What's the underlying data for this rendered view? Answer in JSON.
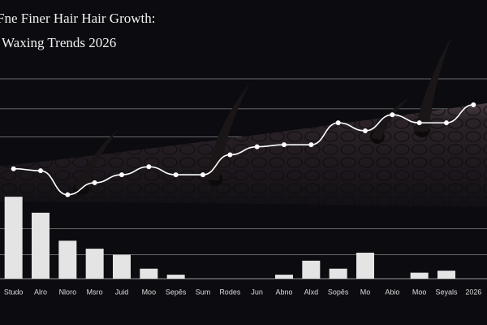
{
  "chart_data": {
    "type": "combo",
    "title": "Fne Finer Hair Hair Growth:",
    "subtitle": "Waxing Trends 2026",
    "categories": [
      "Studo",
      "Alro",
      "Nloro",
      "Msro",
      "Juid",
      "Moo",
      "Sepēs",
      "Sum",
      "Rodes",
      "Jun",
      "Abno",
      "Alxd",
      "Sopēs",
      "Mo",
      "Abio",
      "Moo",
      "Seyals",
      "2026"
    ],
    "series": [
      {
        "type": "bar",
        "color": "#e4e4e4",
        "values": [
          41,
          33,
          19,
          15,
          12,
          5,
          2,
          null,
          null,
          null,
          2,
          9,
          5,
          13,
          null,
          3,
          4,
          null
        ]
      },
      {
        "type": "line",
        "color": "#ffffff",
        "values": [
          55,
          54,
          42,
          48,
          52,
          56,
          52,
          52,
          62,
          66,
          67,
          67,
          78,
          74,
          82,
          78,
          78,
          87
        ]
      }
    ],
    "ylim": [
      0,
      100
    ],
    "yticks": [
      12,
      25,
      42,
      56,
      71,
      85,
      100
    ],
    "grid": true
  }
}
